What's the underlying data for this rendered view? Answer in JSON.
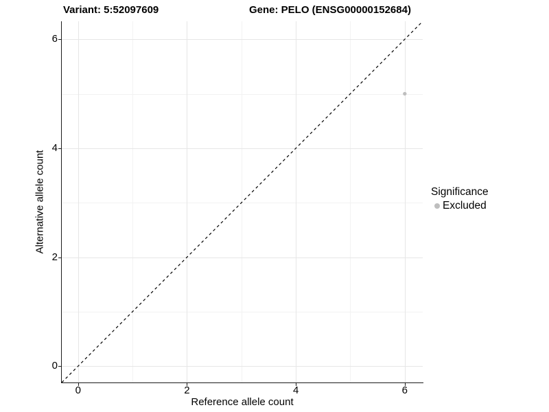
{
  "chart_data": {
    "type": "scatter",
    "title_left": "Variant: 5:52097609",
    "title_right": "Gene: PELO (ENSG00000152684)",
    "xlabel": "Reference allele count",
    "ylabel": "Alternative allele count",
    "xlim": [
      -0.3,
      6.33
    ],
    "ylim": [
      -0.3,
      6.33
    ],
    "x_ticks": [
      0,
      2,
      4,
      6
    ],
    "y_ticks": [
      0,
      2,
      4,
      6
    ],
    "x_minor_gridlines": [
      1,
      3,
      5
    ],
    "y_minor_gridlines": [
      1,
      3,
      5
    ],
    "grid": "major and minor, on white panel, no panel border, black L axes",
    "points": [
      {
        "x": 6,
        "y": 5,
        "series": "Excluded"
      }
    ],
    "reference_line": {
      "kind": "diagonal y=x",
      "style": "dashed",
      "color": "#000000"
    },
    "legend": {
      "title": "Significance",
      "position": "right",
      "items": [
        {
          "label": "Excluded",
          "color": "#bebebe",
          "marker": "circle"
        }
      ]
    },
    "colors": {
      "background": "#ffffff",
      "grid_major": "#e6e6e6",
      "grid_minor": "#f2f2f2",
      "axis_line": "#1a1a1a",
      "point": "#bebebe",
      "text": "#000000"
    }
  }
}
